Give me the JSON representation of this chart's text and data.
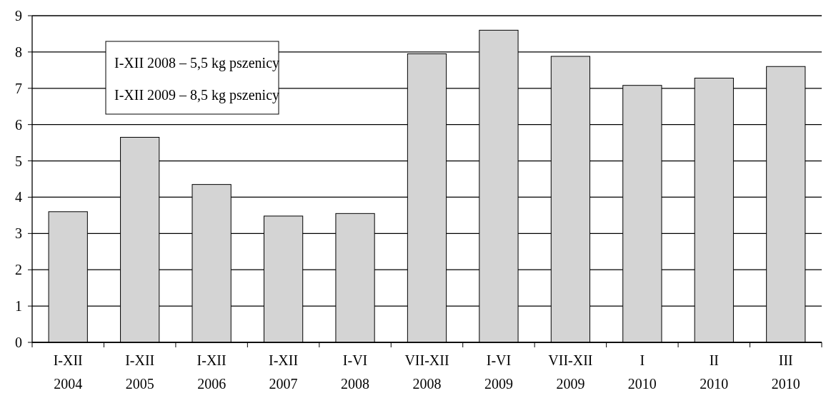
{
  "chart_data": {
    "type": "bar",
    "categories": [
      "I-XII\n2004",
      "I-XII\n2005",
      "I-XII\n2006",
      "I-XII\n2007",
      "I-VI\n2008",
      "VII-XII\n2008",
      "I-VI\n2009",
      "VII-XII\n2009",
      "I\n2010",
      "II\n2010",
      "III\n2010"
    ],
    "values": [
      3.6,
      5.65,
      4.35,
      3.48,
      3.55,
      7.95,
      8.6,
      7.88,
      7.08,
      7.28,
      7.6
    ],
    "color": "#d4d4d4",
    "ylim": [
      0,
      9
    ],
    "yticks": [
      0,
      1,
      2,
      3,
      4,
      5,
      6,
      7,
      8,
      9
    ],
    "grid": "y",
    "annotations": [
      "I-XII 2008 – 5,5 kg pszenicy",
      "I-XII 2009 – 8,5 kg pszenicy"
    ]
  }
}
